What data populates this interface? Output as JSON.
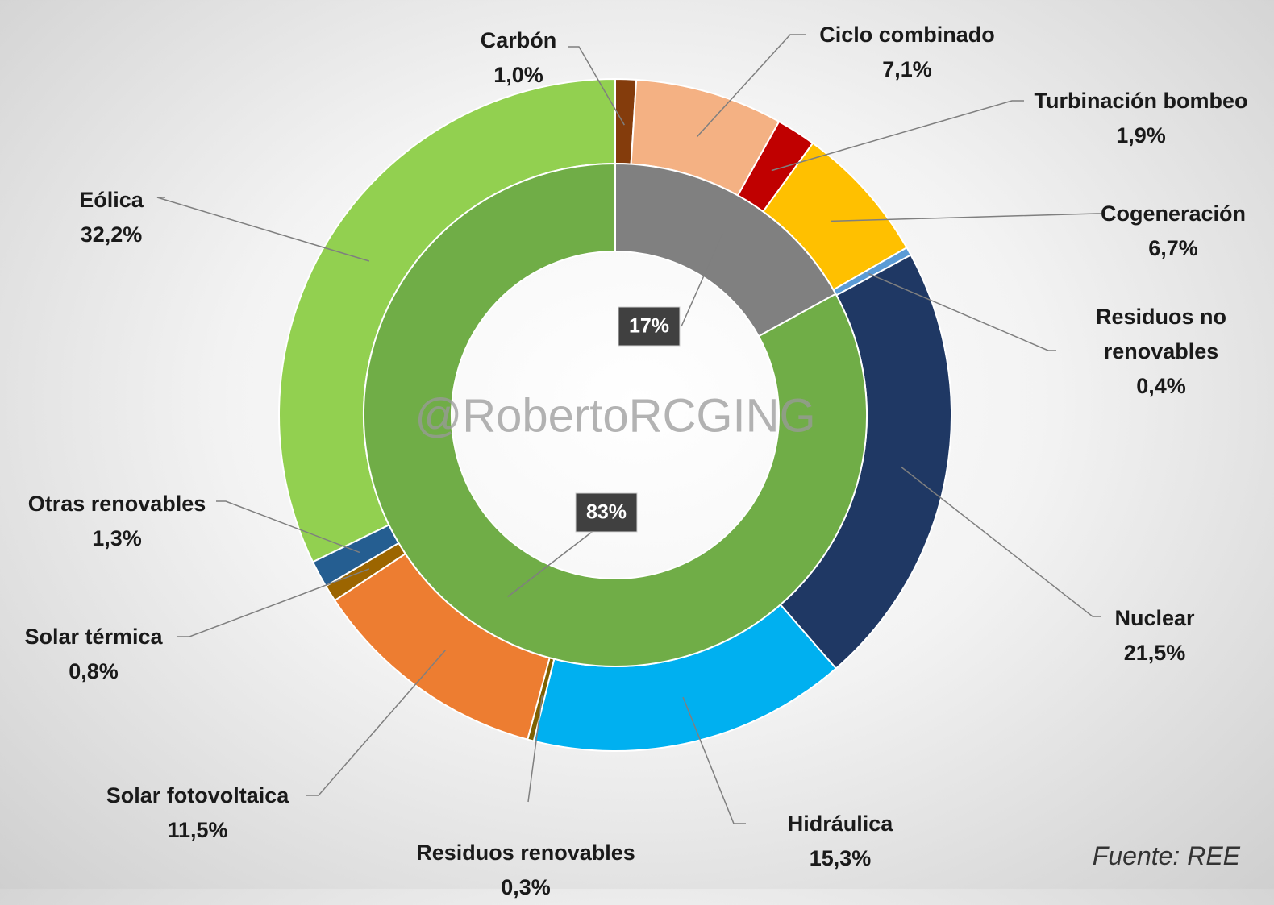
{
  "chart_data": {
    "type": "pie",
    "watermark": "@RobertoRCGING",
    "source": "Fuente: REE",
    "rings": [
      {
        "categories": [
          "Carbón",
          "Ciclo combinado",
          "Turbinación bombeo",
          "Cogeneración",
          "Residuos no renovables",
          "Nuclear",
          "Hidráulica",
          "Residuos renovables",
          "Solar fotovoltaica",
          "Solar térmica",
          "Otras renovables",
          "Eólica"
        ],
        "values": [
          1.0,
          7.1,
          1.9,
          6.7,
          0.4,
          21.5,
          15.3,
          0.3,
          11.5,
          0.8,
          1.3,
          32.2
        ],
        "value_labels": [
          "1,0%",
          "7,1%",
          "1,9%",
          "6,7%",
          "0,4%",
          "21,5%",
          "15,3%",
          "0,3%",
          "11,5%",
          "0,8%",
          "1,3%",
          "32,2%"
        ],
        "colors": [
          "#843c0c",
          "#f4b183",
          "#c00000",
          "#ffc000",
          "#5b9bd5",
          "#1f3864",
          "#00b0f0",
          "#7f6000",
          "#ed7d31",
          "#9c6500",
          "#255e91",
          "#92d050"
        ]
      },
      {
        "values": [
          17,
          83
        ],
        "value_labels": [
          "17%",
          "83%"
        ],
        "colors": [
          "#808080",
          "#70ad47"
        ]
      }
    ]
  }
}
